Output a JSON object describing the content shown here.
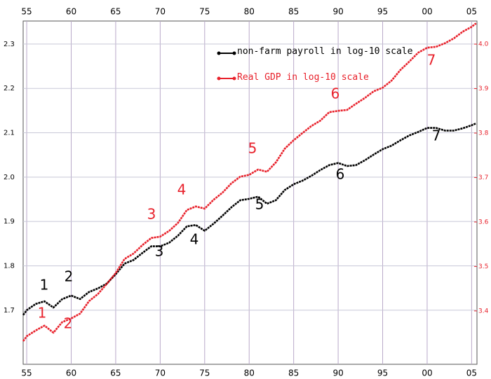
{
  "chart_data": {
    "type": "line",
    "x": [
      1954.6,
      1955,
      1956,
      1957,
      1958,
      1959,
      1960,
      1961,
      1962,
      1963,
      1964,
      1965,
      1966,
      1967,
      1968,
      1969,
      1970,
      1971,
      1972,
      1973,
      1974,
      1975,
      1976,
      1977,
      1978,
      1979,
      1980,
      1981,
      1982,
      1983,
      1984,
      1985,
      1986,
      1987,
      1988,
      1989,
      1990,
      1991,
      1992,
      1993,
      1994,
      1995,
      1996,
      1997,
      1998,
      1999,
      2000,
      2001,
      2002,
      2003,
      2004,
      2005,
      2005.5
    ],
    "xlim": [
      1954.6,
      2005.6
    ],
    "xticks": [
      {
        "value": 1955,
        "label": "55"
      },
      {
        "value": 1960,
        "label": "60"
      },
      {
        "value": 1965,
        "label": "65"
      },
      {
        "value": 1970,
        "label": "70"
      },
      {
        "value": 1975,
        "label": "75"
      },
      {
        "value": 1980,
        "label": "80"
      },
      {
        "value": 1985,
        "label": "85"
      },
      {
        "value": 1990,
        "label": "90"
      },
      {
        "value": 1995,
        "label": "95"
      },
      {
        "value": 2000,
        "label": "00"
      },
      {
        "value": 2005,
        "label": "05"
      }
    ],
    "ylim": [
      1.578,
      2.352
    ],
    "yticks": [
      1.7,
      1.8,
      1.9,
      {
        "value": 2.0,
        "label": "2.0"
      },
      2.1,
      2.2,
      2.3
    ],
    "y2lim": [
      3.28,
      4.052
    ],
    "y2ticks": [
      3.4,
      3.5,
      3.6,
      3.7,
      3.8,
      3.9,
      {
        "value": 4.0,
        "label": "4.0"
      }
    ],
    "grid": true,
    "series": [
      {
        "name": "non-farm payroll in log-10 scale",
        "color": "#000000",
        "values": [
          1.689,
          1.7,
          1.714,
          1.72,
          1.706,
          1.725,
          1.733,
          1.725,
          1.741,
          1.749,
          1.76,
          1.781,
          1.805,
          1.813,
          1.829,
          1.844,
          1.844,
          1.852,
          1.868,
          1.889,
          1.892,
          1.879,
          1.895,
          1.913,
          1.932,
          1.948,
          1.951,
          1.956,
          1.94,
          1.948,
          1.971,
          1.984,
          1.992,
          2.003,
          2.016,
          2.027,
          2.032,
          2.025,
          2.027,
          2.038,
          2.051,
          2.063,
          2.071,
          2.083,
          2.094,
          2.102,
          2.111,
          2.111,
          2.105,
          2.105,
          2.11,
          2.117,
          2.121
        ]
      },
      {
        "name": "Real GDP in log-10 scale",
        "color": "#e8212b",
        "axis": "y2",
        "values": [
          3.332,
          3.343,
          3.356,
          3.367,
          3.351,
          3.375,
          3.383,
          3.394,
          3.422,
          3.438,
          3.461,
          3.485,
          3.517,
          3.529,
          3.548,
          3.564,
          3.567,
          3.58,
          3.598,
          3.627,
          3.635,
          3.63,
          3.65,
          3.666,
          3.687,
          3.702,
          3.706,
          3.718,
          3.713,
          3.734,
          3.765,
          3.784,
          3.8,
          3.816,
          3.828,
          3.847,
          3.85,
          3.852,
          3.866,
          3.879,
          3.894,
          3.902,
          3.918,
          3.942,
          3.961,
          3.981,
          3.992,
          3.994,
          4.002,
          4.013,
          4.028,
          4.039,
          4.047
        ]
      }
    ],
    "annotations": [
      {
        "text": "1",
        "color": "#000000"
      },
      {
        "text": "2",
        "color": "#000000"
      },
      {
        "text": "3",
        "color": "#000000"
      },
      {
        "text": "4",
        "color": "#000000"
      },
      {
        "text": "5",
        "color": "#000000"
      },
      {
        "text": "6",
        "color": "#000000"
      },
      {
        "text": "7",
        "color": "#000000"
      },
      {
        "text": "1",
        "color": "#e8212b"
      },
      {
        "text": "2",
        "color": "#e8212b"
      },
      {
        "text": "3",
        "color": "#e8212b"
      },
      {
        "text": "4",
        "color": "#e8212b"
      },
      {
        "text": "5",
        "color": "#e8212b"
      },
      {
        "text": "6",
        "color": "#e8212b"
      },
      {
        "text": "7",
        "color": "#e8212b"
      }
    ]
  }
}
